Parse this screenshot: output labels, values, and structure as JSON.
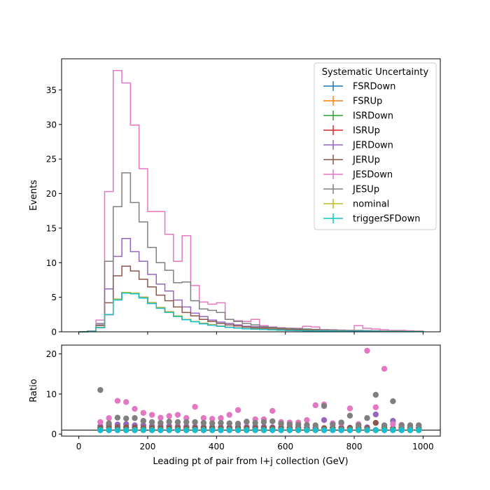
{
  "chart_data": [
    {
      "type": "histogram",
      "xlim": [
        -50,
        1050
      ],
      "ylim": [
        0,
        39.5
      ],
      "ylabel": "Events",
      "yticks": [
        0,
        5,
        10,
        15,
        20,
        25,
        30,
        35
      ],
      "xticks": [
        0,
        200,
        400,
        600,
        800,
        1000
      ],
      "legend": {
        "title": "Systematic Uncertainty",
        "placement": "upper right"
      },
      "bin_edges": [
        0,
        25,
        50,
        75,
        100,
        125,
        150,
        175,
        200,
        225,
        250,
        275,
        300,
        325,
        350,
        375,
        400,
        425,
        450,
        475,
        500,
        525,
        550,
        575,
        600,
        625,
        650,
        675,
        700,
        725,
        750,
        775,
        800,
        825,
        850,
        875,
        900,
        925,
        950,
        975,
        1000
      ],
      "series": [
        {
          "name": "FSRDown",
          "color": "#1f77b4",
          "values": [
            0,
            0.05,
            0.6,
            2.5,
            4.7,
            5.6,
            5.5,
            4.9,
            4.1,
            3.4,
            2.9,
            2.3,
            1.8,
            1.5,
            1.2,
            1.0,
            0.8,
            0.65,
            0.55,
            0.45,
            0.4,
            0.35,
            0.3,
            0.25,
            0.2,
            0.18,
            0.15,
            0.13,
            0.12,
            0.1,
            0.1,
            0.08,
            0.08,
            0.07,
            0.06,
            0.06,
            0.05,
            0.05,
            0.04,
            0.04
          ]
        },
        {
          "name": "FSRUp",
          "color": "#ff7f0e",
          "values": [
            0,
            0.05,
            0.6,
            2.5,
            4.7,
            5.7,
            5.6,
            5.0,
            4.2,
            3.5,
            2.9,
            2.3,
            1.8,
            1.5,
            1.2,
            1.0,
            0.8,
            0.65,
            0.55,
            0.45,
            0.4,
            0.35,
            0.3,
            0.25,
            0.2,
            0.18,
            0.15,
            0.13,
            0.12,
            0.1,
            0.1,
            0.08,
            0.08,
            0.07,
            0.06,
            0.06,
            0.05,
            0.05,
            0.04,
            0.04
          ]
        },
        {
          "name": "ISRDown",
          "color": "#2ca02c",
          "values": [
            0,
            0.05,
            0.6,
            2.5,
            4.7,
            5.7,
            5.6,
            5.0,
            4.2,
            3.5,
            2.9,
            2.3,
            1.8,
            1.5,
            1.2,
            1.0,
            0.8,
            0.65,
            0.55,
            0.45,
            0.4,
            0.35,
            0.3,
            0.25,
            0.2,
            0.18,
            0.15,
            0.13,
            0.12,
            0.1,
            0.1,
            0.08,
            0.08,
            0.07,
            0.06,
            0.06,
            0.05,
            0.05,
            0.04,
            0.04
          ]
        },
        {
          "name": "ISRUp",
          "color": "#d62728",
          "values": [
            0,
            0.05,
            0.6,
            2.5,
            4.7,
            5.7,
            5.6,
            5.0,
            4.2,
            3.5,
            2.9,
            2.3,
            1.8,
            1.5,
            1.2,
            1.0,
            0.8,
            0.65,
            0.55,
            0.45,
            0.4,
            0.35,
            0.3,
            0.25,
            0.2,
            0.18,
            0.15,
            0.13,
            0.12,
            0.1,
            0.1,
            0.08,
            0.08,
            0.07,
            0.06,
            0.06,
            0.05,
            0.05,
            0.04,
            0.04
          ]
        },
        {
          "name": "JERDown",
          "color": "#9467bd",
          "values": [
            0,
            0.1,
            1.2,
            6.2,
            10.9,
            13.5,
            11.6,
            10.2,
            8.3,
            6.9,
            5.9,
            4.6,
            3.6,
            2.7,
            2.2,
            1.7,
            1.4,
            1.2,
            1.0,
            0.8,
            0.75,
            0.7,
            0.6,
            0.5,
            0.4,
            0.35,
            0.3,
            0.3,
            0.25,
            0.2,
            0.18,
            0.15,
            0.15,
            0.12,
            0.1,
            0.1,
            0.09,
            0.08,
            0.07,
            0.06
          ]
        },
        {
          "name": "JERUp",
          "color": "#8c564b",
          "values": [
            0,
            0.08,
            0.9,
            4.2,
            8.1,
            9.5,
            8.8,
            7.6,
            6.5,
            5.3,
            4.5,
            3.6,
            2.8,
            2.3,
            1.8,
            1.5,
            1.2,
            1.0,
            0.85,
            0.7,
            0.6,
            0.55,
            0.5,
            0.4,
            0.35,
            0.3,
            0.25,
            0.22,
            0.2,
            0.18,
            0.15,
            0.13,
            0.12,
            0.1,
            0.09,
            0.08,
            0.07,
            0.06,
            0.06,
            0.05
          ]
        },
        {
          "name": "JESDown",
          "color": "#e377c2",
          "values": [
            0,
            0.1,
            1.7,
            20.3,
            37.8,
            36.0,
            29.9,
            23.6,
            17.4,
            17.4,
            14.1,
            10.2,
            13.9,
            6.7,
            4.3,
            4.0,
            4.2,
            1.8,
            1.6,
            1.5,
            1.8,
            0.9,
            0.7,
            0.6,
            0.5,
            0.5,
            0.8,
            0.7,
            0.3,
            0.3,
            0.25,
            0.2,
            0.9,
            0.5,
            0.4,
            0.3,
            0.2,
            0.2,
            0.15,
            0.1
          ]
        },
        {
          "name": "JESUp",
          "color": "#7f7f7f",
          "values": [
            0,
            0.1,
            1.0,
            10.2,
            18.1,
            23.0,
            18.7,
            15.9,
            12.2,
            10.0,
            8.9,
            7.1,
            7.2,
            4.5,
            3.3,
            3.1,
            2.8,
            1.8,
            1.5,
            1.2,
            1.0,
            0.75,
            0.65,
            0.55,
            0.5,
            0.45,
            0.4,
            0.35,
            0.3,
            0.25,
            0.22,
            0.2,
            0.2,
            0.18,
            0.15,
            0.12,
            0.1,
            0.1,
            0.08,
            0.07
          ]
        },
        {
          "name": "nominal",
          "color": "#bcbd22",
          "values": [
            0,
            0.05,
            0.6,
            2.5,
            4.7,
            5.7,
            5.6,
            5.0,
            4.2,
            3.5,
            2.9,
            2.3,
            1.8,
            1.5,
            1.2,
            1.0,
            0.8,
            0.65,
            0.55,
            0.45,
            0.4,
            0.35,
            0.3,
            0.25,
            0.2,
            0.18,
            0.15,
            0.13,
            0.12,
            0.1,
            0.1,
            0.08,
            0.08,
            0.07,
            0.06,
            0.06,
            0.05,
            0.05,
            0.04,
            0.04
          ]
        },
        {
          "name": "triggerSFDown",
          "color": "#17becf",
          "values": [
            0,
            0.05,
            0.6,
            2.5,
            4.6,
            5.6,
            5.5,
            4.9,
            4.1,
            3.4,
            2.8,
            2.2,
            1.75,
            1.45,
            1.15,
            0.95,
            0.78,
            0.63,
            0.53,
            0.44,
            0.39,
            0.34,
            0.29,
            0.24,
            0.19,
            0.17,
            0.14,
            0.12,
            0.11,
            0.1,
            0.09,
            0.08,
            0.07,
            0.07,
            0.06,
            0.05,
            0.05,
            0.04,
            0.04,
            0.03
          ]
        }
      ]
    },
    {
      "type": "scatter",
      "xlim": [
        -50,
        1050
      ],
      "ylim": [
        -0.5,
        22.2
      ],
      "xlabel": "Leading pt of pair from l+j collection (GeV)",
      "ylabel": "Ratio",
      "yticks": [
        0,
        10,
        20
      ],
      "xticks": [
        0,
        200,
        400,
        600,
        800,
        1000
      ],
      "reference_line": 1,
      "x": [
        62.5,
        87.5,
        112.5,
        137.5,
        162.5,
        187.5,
        212.5,
        237.5,
        262.5,
        287.5,
        312.5,
        337.5,
        362.5,
        387.5,
        412.5,
        437.5,
        462.5,
        487.5,
        512.5,
        537.5,
        562.5,
        587.5,
        612.5,
        637.5,
        662.5,
        687.5,
        712.5,
        737.5,
        762.5,
        787.5,
        812.5,
        837.5,
        862.5,
        887.5,
        912.5,
        937.5,
        962.5,
        987.5
      ],
      "series": [
        {
          "name": "FSRDown",
          "color": "#1f77b4",
          "values": [
            1.0,
            1.0,
            1.0,
            1.0,
            1.0,
            1.0,
            1.0,
            1.0,
            1.0,
            1.0,
            1.0,
            1.0,
            1.0,
            1.0,
            1.0,
            1.0,
            1.0,
            1.0,
            1.0,
            1.0,
            1.0,
            1.0,
            1.0,
            1.0,
            1.0,
            1.0,
            1.0,
            1.0,
            1.0,
            1.0,
            1.0,
            1.0,
            1.0,
            1.0,
            1.0,
            1.0,
            1.0,
            1.0
          ]
        },
        {
          "name": "FSRUp",
          "color": "#ff7f0e",
          "values": [
            1.0,
            1.0,
            1.0,
            1.0,
            1.0,
            1.0,
            1.0,
            1.0,
            1.0,
            1.0,
            1.0,
            1.0,
            1.0,
            1.0,
            1.0,
            1.0,
            1.0,
            1.0,
            1.0,
            1.0,
            1.0,
            1.0,
            1.0,
            1.0,
            1.0,
            1.0,
            1.0,
            1.0,
            1.0,
            1.0,
            1.0,
            1.0,
            1.0,
            1.0,
            1.0,
            1.0,
            1.0,
            1.0
          ]
        },
        {
          "name": "ISRDown",
          "color": "#2ca02c",
          "values": [
            1.0,
            1.0,
            1.0,
            1.0,
            1.0,
            1.0,
            1.0,
            1.0,
            1.0,
            1.0,
            1.0,
            1.0,
            1.0,
            1.0,
            1.0,
            1.0,
            1.0,
            1.0,
            1.0,
            1.0,
            1.0,
            1.0,
            1.0,
            1.0,
            1.0,
            1.0,
            1.0,
            1.0,
            1.0,
            1.0,
            1.0,
            1.0,
            1.0,
            1.0,
            1.0,
            1.0,
            1.0,
            1.0
          ]
        },
        {
          "name": "ISRUp",
          "color": "#d62728",
          "values": [
            1.0,
            1.0,
            1.0,
            1.0,
            1.0,
            1.0,
            1.0,
            1.0,
            1.0,
            1.0,
            1.0,
            1.0,
            1.0,
            1.0,
            1.0,
            1.0,
            1.0,
            1.0,
            1.0,
            1.0,
            1.0,
            1.0,
            1.0,
            1.0,
            1.0,
            1.0,
            1.0,
            1.0,
            1.0,
            1.0,
            1.0,
            1.0,
            1.0,
            1.0,
            1.0,
            1.0,
            1.0,
            1.0
          ]
        },
        {
          "name": "JERDown",
          "color": "#9467bd",
          "values": [
            2.0,
            2.3,
            2.4,
            2.5,
            2.2,
            2.2,
            2.0,
            2.0,
            2.0,
            1.9,
            1.9,
            1.8,
            1.8,
            1.8,
            1.7,
            1.7,
            1.8,
            1.8,
            1.9,
            1.8,
            1.7,
            1.7,
            1.7,
            1.6,
            1.6,
            1.5,
            3.5,
            1.6,
            1.6,
            1.6,
            1.6,
            1.7,
            4.9,
            1.6,
            3.3,
            1.6,
            1.6,
            1.6
          ]
        },
        {
          "name": "JERUp",
          "color": "#8c564b",
          "values": [
            1.5,
            1.7,
            1.7,
            1.7,
            1.6,
            1.5,
            1.5,
            1.5,
            1.5,
            1.5,
            1.5,
            1.5,
            1.5,
            1.5,
            1.5,
            1.5,
            1.5,
            1.5,
            1.5,
            1.5,
            1.5,
            1.5,
            1.5,
            1.5,
            1.4,
            1.4,
            1.5,
            1.5,
            1.4,
            1.5,
            1.5,
            1.4,
            2.8,
            1.5,
            1.4,
            1.4,
            1.4,
            1.4
          ]
        },
        {
          "name": "JESDown",
          "color": "#e377c2",
          "values": [
            3.0,
            4.0,
            8.3,
            8.0,
            6.3,
            5.3,
            4.8,
            4.1,
            4.5,
            4.8,
            4.0,
            6.8,
            4.0,
            3.8,
            4.0,
            4.8,
            6.0,
            3.0,
            3.7,
            3.7,
            5.8,
            3.0,
            2.9,
            2.9,
            3.5,
            7.2,
            7.4,
            2.7,
            2.7,
            6.4,
            2.5,
            20.8,
            6.7,
            16.3,
            2.5,
            2.3,
            2.2,
            2.2
          ]
        },
        {
          "name": "JESUp",
          "color": "#7f7f7f",
          "values": [
            11.0,
            2.7,
            4.1,
            3.9,
            4.0,
            3.3,
            3.0,
            2.8,
            3.1,
            3.0,
            3.0,
            3.0,
            2.8,
            2.7,
            2.8,
            2.7,
            2.6,
            3.1,
            2.8,
            3.0,
            3.2,
            2.6,
            2.4,
            2.3,
            2.3,
            2.2,
            7.0,
            2.4,
            2.9,
            4.6,
            2.2,
            4.0,
            9.8,
            2.2,
            8.2,
            2.2,
            2.2,
            2.2
          ]
        },
        {
          "name": "nominal",
          "color": "#bcbd22",
          "values": [
            1.0,
            1.0,
            1.0,
            1.0,
            1.0,
            1.0,
            1.0,
            1.0,
            1.0,
            1.0,
            1.0,
            1.0,
            1.0,
            1.0,
            1.0,
            1.0,
            1.0,
            1.0,
            1.0,
            1.0,
            1.0,
            1.0,
            1.0,
            1.0,
            1.0,
            1.0,
            1.0,
            1.0,
            1.0,
            1.0,
            1.0,
            1.0,
            1.0,
            1.0,
            1.0,
            1.0,
            1.0,
            1.0
          ]
        },
        {
          "name": "triggerSFDown",
          "color": "#17becf",
          "values": [
            0.97,
            0.97,
            0.97,
            0.97,
            0.97,
            0.97,
            0.97,
            0.97,
            0.97,
            0.97,
            0.97,
            0.97,
            0.97,
            0.97,
            0.97,
            0.97,
            0.97,
            0.97,
            0.97,
            0.97,
            0.97,
            0.97,
            0.97,
            0.97,
            0.97,
            0.97,
            0.97,
            0.97,
            0.97,
            0.97,
            0.97,
            0.97,
            0.97,
            0.97,
            0.97,
            0.97,
            0.97,
            0.97
          ]
        }
      ]
    }
  ]
}
